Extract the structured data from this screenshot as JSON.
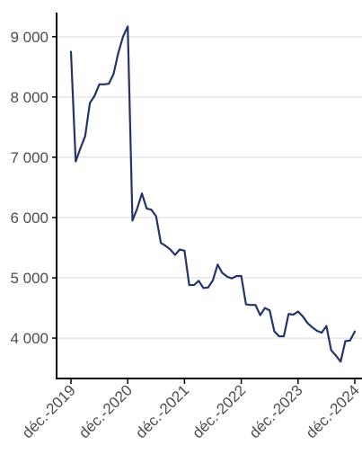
{
  "chart_data": {
    "type": "line",
    "title": "",
    "xlabel": "",
    "ylabel": "",
    "x_tick_labels": [
      "déc.-2019",
      "déc.-2020",
      "déc.-2021",
      "déc.-2022",
      "déc.-2023",
      "déc.-2024"
    ],
    "y_tick_labels": [
      "4 000",
      "5 000",
      "6 000",
      "7 000",
      "8 000",
      "9 000"
    ],
    "y_ticks": [
      4000,
      5000,
      6000,
      7000,
      8000,
      9000
    ],
    "ylim": [
      3330,
      9400
    ],
    "xlim_months": [
      -0.6,
      60.2
    ],
    "grid": "horizontal",
    "line_color": "#24346b",
    "series": [
      {
        "values": [
          [
            0,
            8750
          ],
          [
            1,
            6930
          ],
          [
            2,
            7150
          ],
          [
            3,
            7350
          ],
          [
            4,
            7900
          ],
          [
            5,
            8020
          ],
          [
            6,
            8210
          ],
          [
            7,
            8210
          ],
          [
            8,
            8220
          ],
          [
            9,
            8380
          ],
          [
            10,
            8730
          ],
          [
            11,
            9000
          ],
          [
            12,
            9170
          ],
          [
            13,
            5950
          ],
          [
            14,
            6150
          ],
          [
            15,
            6400
          ],
          [
            16,
            6150
          ],
          [
            17,
            6130
          ],
          [
            18,
            6020
          ],
          [
            19,
            5580
          ],
          [
            20,
            5530
          ],
          [
            21,
            5470
          ],
          [
            22,
            5380
          ],
          [
            23,
            5470
          ],
          [
            24,
            5450
          ],
          [
            25,
            4880
          ],
          [
            26,
            4880
          ],
          [
            27,
            4950
          ],
          [
            28,
            4830
          ],
          [
            29,
            4840
          ],
          [
            30,
            4960
          ],
          [
            31,
            5220
          ],
          [
            32,
            5080
          ],
          [
            33,
            5020
          ],
          [
            34,
            4990
          ],
          [
            35,
            5030
          ],
          [
            36,
            5030
          ],
          [
            37,
            4560
          ],
          [
            38,
            4550
          ],
          [
            39,
            4550
          ],
          [
            40,
            4380
          ],
          [
            41,
            4500
          ],
          [
            42,
            4460
          ],
          [
            43,
            4110
          ],
          [
            44,
            4030
          ],
          [
            45,
            4030
          ],
          [
            46,
            4400
          ],
          [
            47,
            4390
          ],
          [
            48,
            4440
          ],
          [
            49,
            4360
          ],
          [
            50,
            4250
          ],
          [
            51,
            4180
          ],
          [
            52,
            4120
          ],
          [
            53,
            4090
          ],
          [
            54,
            4200
          ],
          [
            55,
            3800
          ],
          [
            56,
            3710
          ],
          [
            57,
            3610
          ],
          [
            58,
            3950
          ],
          [
            59,
            3960
          ],
          [
            60,
            4110
          ]
        ]
      }
    ]
  }
}
